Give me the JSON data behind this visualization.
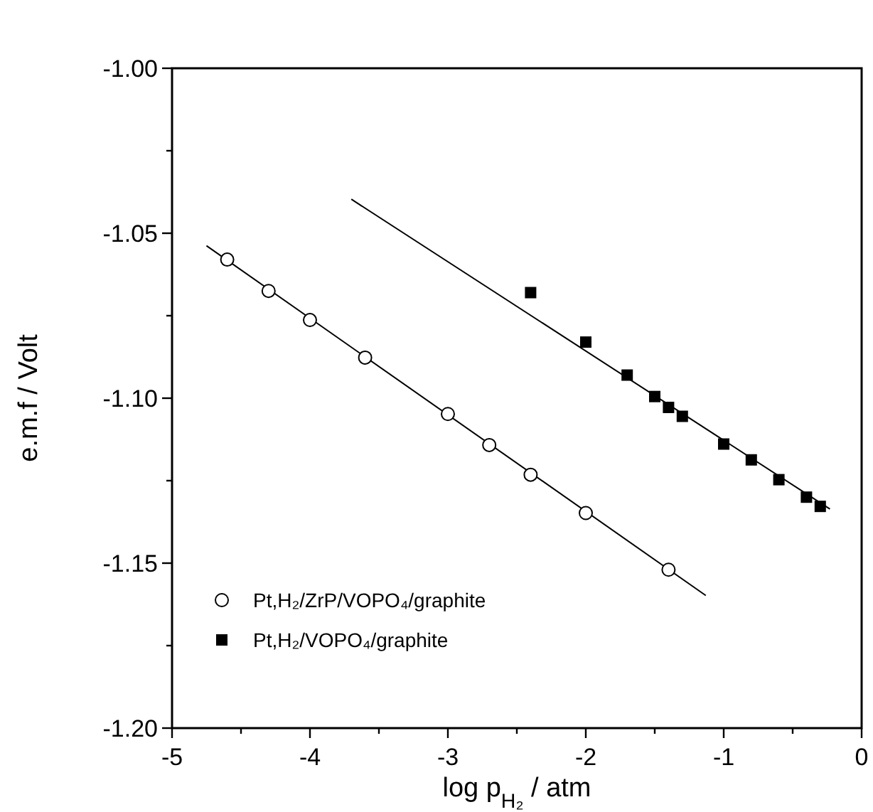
{
  "chart_data": {
    "type": "scatter",
    "xlabel": "log p$_{H₂}$ / atm",
    "ylabel": "e.m.f / Volt",
    "xlim": [
      -5,
      0
    ],
    "ylim": [
      -1.2,
      -1.0
    ],
    "xticks": [
      -5,
      {
        "value": -4.5,
        "label": null
      },
      -4,
      {
        "value": -3.5,
        "label": null
      },
      -3,
      {
        "value": -2.5,
        "label": null
      },
      -2,
      {
        "value": -1.5,
        "label": null
      },
      -1,
      {
        "value": -0.5,
        "label": null
      },
      0
    ],
    "yticks": [
      {
        "value": -1.2,
        "label": "-1.20"
      },
      {
        "value": -1.175,
        "label": null
      },
      {
        "value": -1.15,
        "label": "-1.15"
      },
      {
        "value": -1.125,
        "label": null
      },
      {
        "value": -1.1,
        "label": "-1.10"
      },
      {
        "value": -1.075,
        "label": null
      },
      {
        "value": -1.05,
        "label": "-1.05"
      },
      {
        "value": -1.025,
        "label": null
      },
      {
        "value": -1.0,
        "label": "-1.00"
      }
    ],
    "grid": false,
    "legend": "bottom left",
    "series": [
      {
        "name": "Pt,H₂/ZrP/VOPO₄/graphite",
        "marker": "circle",
        "color": "#000000",
        "x": [
          -4.6,
          -4.3,
          -4.0,
          -3.6,
          -3.0,
          -2.7,
          -2.4,
          -2.0,
          -1.4
        ],
        "values": [
          -1.058,
          -1.0675,
          -1.0763,
          -1.0877,
          -1.1048,
          -1.1142,
          -1.1232,
          -1.1348,
          -1.152
        ]
      },
      {
        "name": "Pt,H₂/VOPO₄/graphite",
        "marker": "square",
        "color": "#000000",
        "x": [
          -2.4,
          -2.0,
          -1.7,
          -1.5,
          -1.4,
          -1.3,
          -1.0,
          -0.8,
          -0.6,
          -0.4,
          -0.3
        ],
        "values": [
          -1.068,
          -1.083,
          -1.093,
          -1.0995,
          -1.1028,
          -1.1055,
          -1.1139,
          -1.1187,
          -1.1247,
          -1.13,
          -1.1328
        ]
      },
      {
        "type": "line",
        "color": "#000000",
        "x": [
          -4.75,
          -1.13
        ],
        "values": [
          -1.0538,
          -1.1598
        ]
      },
      {
        "type": "line",
        "color": "#000000",
        "x": [
          -3.7,
          -0.23
        ],
        "values": [
          -1.0397,
          -1.1336
        ]
      }
    ]
  }
}
